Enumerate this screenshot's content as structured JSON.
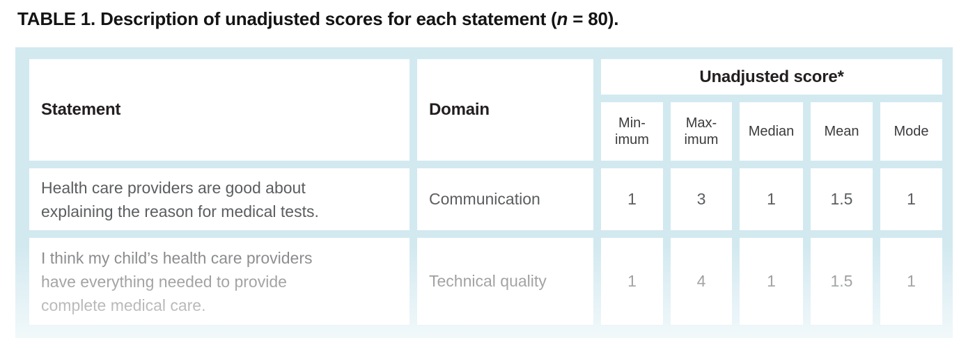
{
  "title": {
    "label": "TABLE 1.",
    "text": " Description of unadjusted scores for each statement (",
    "n_italic": "n",
    "suffix": " = 80)."
  },
  "table": {
    "header": {
      "statement": "Statement",
      "domain": "Domain",
      "score_group": "Unadjusted score*",
      "sub_columns": [
        "Min-\nimum",
        "Max-\nimum",
        "Median",
        "Mean",
        "Mode"
      ]
    },
    "rows": [
      {
        "statement": "Health care providers are good about\nexplaining the reason for medical tests.",
        "domain": "Communication",
        "minimum": "1",
        "maximum": "3",
        "median": "1",
        "mean": "1.5",
        "mode": "1"
      },
      {
        "statement": "I think my child’s health care providers\nhave everything needed to provide\ncomplete medical care.",
        "domain": "Technical quality",
        "minimum": "1",
        "maximum": "4",
        "median": "1",
        "mean": "1.5",
        "mode": "1"
      }
    ]
  },
  "colors": {
    "panel_background": "#d2e9f0",
    "cell_background": "#ffffff",
    "header_text": "#231f20",
    "subheader_text": "#3b3b3d",
    "row1_text": "#5b5d5f",
    "row2_text_base": "#7e7f81",
    "title_text": "#141414"
  }
}
